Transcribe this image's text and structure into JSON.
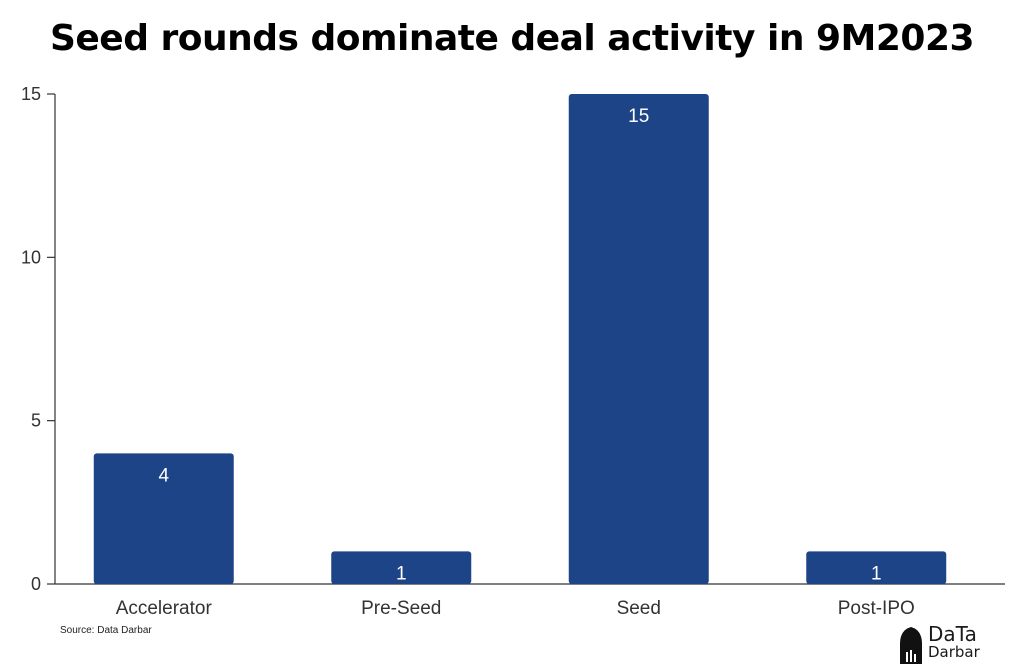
{
  "chart_data": {
    "type": "bar",
    "title": "Seed rounds dominate deal activity in 9M2023",
    "categories": [
      "Accelerator",
      "Pre-Seed",
      "Seed",
      "Post-IPO"
    ],
    "values": [
      4,
      1,
      15,
      1
    ],
    "data_labels": [
      "4",
      "1",
      "15",
      "1"
    ],
    "y_ticks": [
      0,
      5,
      10,
      15
    ],
    "ylim": [
      0,
      15
    ],
    "xlabel": "",
    "ylabel": "",
    "grid": false,
    "bar_color": "#1e4488",
    "label_color": "#ffffff"
  },
  "source": "Source: Data Darbar",
  "logo": {
    "icon": "mosque-dome-icon",
    "line1": "DaTa",
    "line2": "Darbar"
  }
}
